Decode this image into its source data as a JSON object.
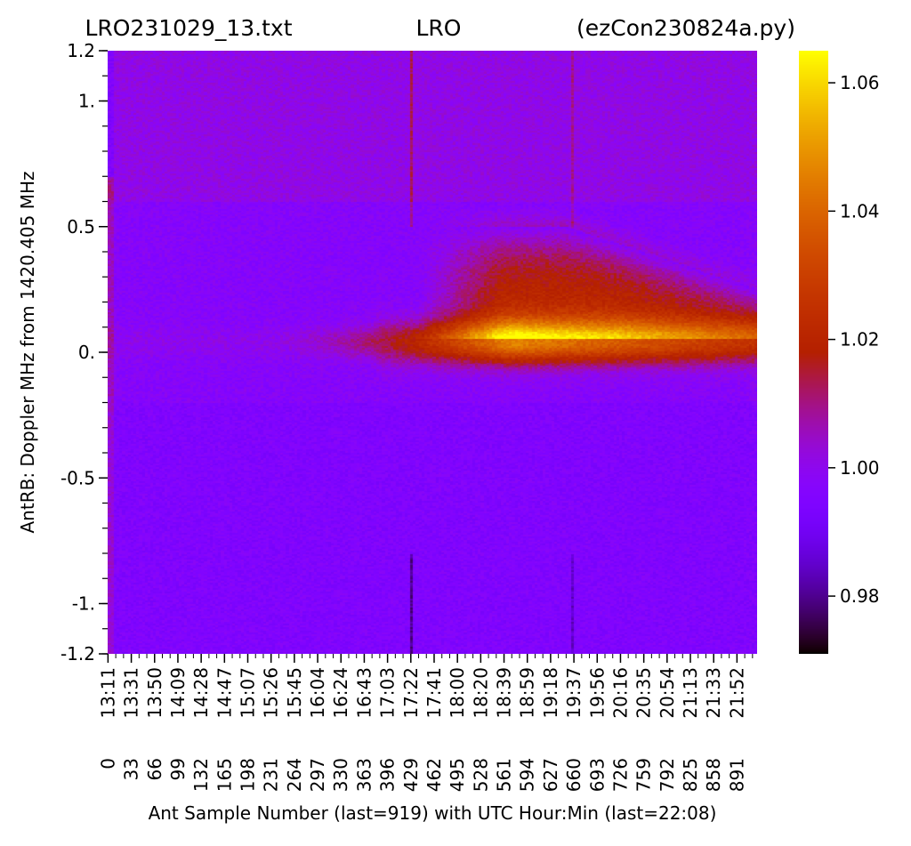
{
  "figure": {
    "title_left": "LRO231029_13.txt",
    "title_center": "LRO",
    "title_right": "(ezCon230824a.py)",
    "xlabel": "Ant Sample Number (last=919) with UTC Hour:Min (last=22:08)",
    "ylabel": "AntRB:  Doppler MHz from 1420.405 MHz"
  },
  "chart_data": {
    "type": "heatmap",
    "title": "LRO231029_13.txt LRO (ezCon230824a.py)",
    "xlabel": "Ant Sample Number (last=919) with UTC Hour:Min (last=22:08)",
    "ylabel": "AntRB:  Doppler MHz from 1420.405 MHz",
    "x_range": [
      0,
      919
    ],
    "y_range": [
      -1.2,
      1.2
    ],
    "y_ticks": [
      {
        "value": 1.2,
        "label": "1.2"
      },
      {
        "value": 1.0,
        "label": "1."
      },
      {
        "value": 0.5,
        "label": "0.5"
      },
      {
        "value": 0.0,
        "label": "0."
      },
      {
        "value": -0.5,
        "label": "-0.5"
      },
      {
        "value": -1.0,
        "label": "-1."
      },
      {
        "value": -1.2,
        "label": "-1.2"
      }
    ],
    "x_tick_samples": [
      "0",
      "33",
      "66",
      "99",
      "132",
      "165",
      "198",
      "231",
      "264",
      "297",
      "330",
      "363",
      "396",
      "429",
      "462",
      "495",
      "528",
      "561",
      "594",
      "627",
      "660",
      "693",
      "726",
      "759",
      "792",
      "825",
      "858",
      "891"
    ],
    "x_tick_times": [
      "13:11",
      "13:31",
      "13:50",
      "14:09",
      "14:28",
      "14:47",
      "15:07",
      "15:26",
      "15:45",
      "16:04",
      "16:24",
      "16:43",
      "17:03",
      "17:22",
      "17:41",
      "18:00",
      "18:20",
      "18:39",
      "18:59",
      "19:18",
      "19:37",
      "19:56",
      "20:16",
      "20:35",
      "20:54",
      "21:13",
      "21:33",
      "21:52"
    ],
    "colorbar": {
      "colormap": "gnuplot",
      "range": [
        0.971,
        1.065
      ],
      "ticks": [
        {
          "value": 0.98,
          "label": "0.98"
        },
        {
          "value": 1.0,
          "label": "1.00"
        },
        {
          "value": 1.02,
          "label": "1.02"
        },
        {
          "value": 1.04,
          "label": "1.04"
        },
        {
          "value": 1.06,
          "label": "1.06"
        }
      ]
    },
    "background_level": 0.997,
    "features": [
      {
        "name": "hydrogen line",
        "sample_peak": 570,
        "doppler_center": 0.04,
        "peak_value": 1.05
      },
      {
        "name": "upper wing",
        "sample_start": 500,
        "doppler_center": 0.3,
        "peak_value": 1.025
      },
      {
        "name": "vertical streak",
        "sample": 430,
        "value_high": 1.015,
        "value_low": 0.985
      },
      {
        "name": "vertical streak",
        "sample": 657,
        "value_high": 1.015,
        "value_low": 0.985
      }
    ]
  }
}
